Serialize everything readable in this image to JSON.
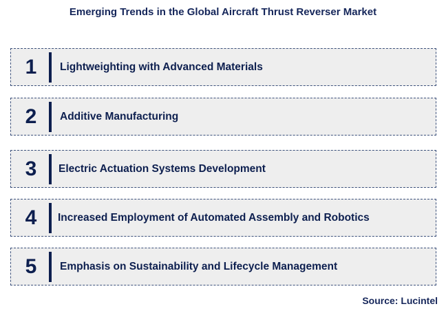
{
  "title": "Emerging Trends in the Global Aircraft Thrust Reverser Market",
  "trends": [
    {
      "number": "1",
      "label": "Lightweighting with Advanced Materials"
    },
    {
      "number": "2",
      "label": "Additive Manufacturing"
    },
    {
      "number": "3",
      "label": "Electric Actuation Systems Development"
    },
    {
      "number": "4",
      "label": "Increased Employment of Automated Assembly and Robotics"
    },
    {
      "number": "5",
      "label": "Emphasis on Sustainability and Lifecycle Management"
    }
  ],
  "source": "Source: Lucintel",
  "colors": {
    "text": "#0d1f4f",
    "box_background": "#eeeeee",
    "box_border": "#3a4f7a"
  }
}
